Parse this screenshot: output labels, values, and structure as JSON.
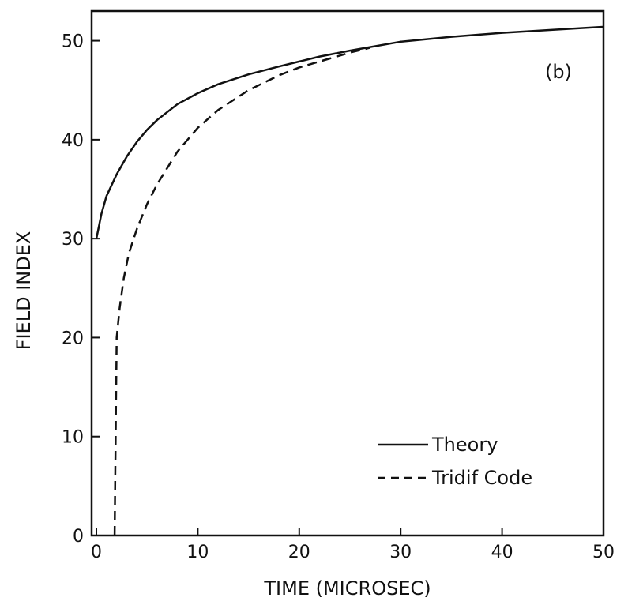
{
  "chart_data": {
    "type": "line",
    "title": "",
    "panel_label": "(b)",
    "xlabel": "TIME (MICROSEC)",
    "ylabel": "FIELD INDEX",
    "xlim": [
      0,
      50
    ],
    "ylim": [
      0,
      53
    ],
    "xticks": [
      0,
      10,
      20,
      30,
      40,
      50
    ],
    "yticks": [
      0,
      10,
      20,
      30,
      40,
      50
    ],
    "grid": false,
    "legend_position": "bottom-right",
    "series": [
      {
        "name": "Theory",
        "style": "solid",
        "x": [
          0,
          0.5,
          1,
          2,
          3,
          4,
          5,
          6,
          8,
          10,
          12,
          15,
          18,
          20,
          22,
          25,
          30,
          35,
          40,
          45,
          50
        ],
        "y": [
          30.0,
          32.5,
          34.3,
          36.5,
          38.3,
          39.8,
          41.0,
          42.0,
          43.6,
          44.7,
          45.6,
          46.6,
          47.4,
          47.9,
          48.4,
          49.0,
          49.9,
          50.4,
          50.8,
          51.1,
          51.4
        ]
      },
      {
        "name": "Tridif Code",
        "style": "dashed",
        "x": [
          1.8,
          1.9,
          2.0,
          2.3,
          2.7,
          3.2,
          4,
          5,
          6,
          8,
          10,
          12,
          15,
          18,
          20,
          22,
          25,
          27
        ],
        "y": [
          0,
          10.0,
          20.0,
          23.0,
          26.0,
          28.5,
          31.0,
          33.5,
          35.5,
          38.8,
          41.2,
          43.0,
          45.0,
          46.5,
          47.3,
          47.9,
          48.8,
          49.3
        ]
      }
    ]
  },
  "colors": {
    "line": "#111111",
    "background": "#ffffff"
  }
}
